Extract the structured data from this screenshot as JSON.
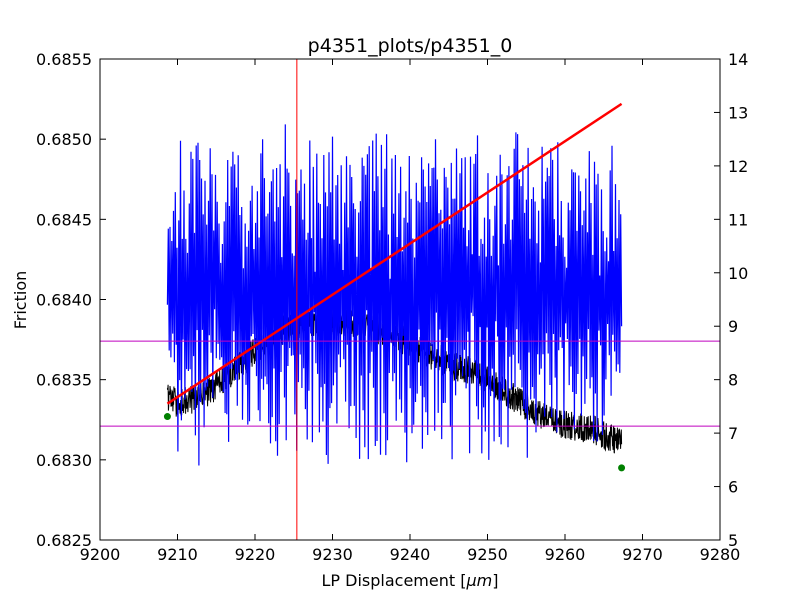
{
  "chart_data": {
    "type": "line",
    "title": "p4351_plots/p4351_0",
    "xlabel": "LP Displacement [",
    "xlabel_unit": "μm",
    "xlabel_close": "]",
    "ylabel": "Friction",
    "xlim": [
      9200,
      9280
    ],
    "ylim": [
      0.6825,
      0.6855
    ],
    "y2lim": [
      5,
      14
    ],
    "x_ticks": [
      "9200",
      "9210",
      "9220",
      "9230",
      "9240",
      "9250",
      "9260",
      "9270",
      "9280"
    ],
    "y_ticks": [
      "0.6825",
      "0.6830",
      "0.6835",
      "0.6840",
      "0.6845",
      "0.6850",
      "0.6855"
    ],
    "y2_ticks": [
      "5",
      "6",
      "7",
      "8",
      "9",
      "10",
      "11",
      "12",
      "13",
      "14"
    ],
    "colors": {
      "friction": "#000000",
      "secondary": "#0000ff",
      "fit": "#ff0000",
      "marker": "#008000",
      "vline": "#ff0000",
      "hline": "#bf00bf"
    },
    "friction_series": {
      "name": "Friction",
      "axis": "left",
      "x": [
        9208.7,
        9210,
        9212,
        9214,
        9216,
        9218,
        9220,
        9222,
        9224,
        9226,
        9228,
        9230,
        9232,
        9234,
        9236,
        9238,
        9240,
        9242,
        9244,
        9246,
        9248,
        9250,
        9252,
        9254,
        9256,
        9258,
        9260,
        9262,
        9264,
        9266,
        9267.3
      ],
      "y": [
        0.6834,
        0.68335,
        0.68338,
        0.68342,
        0.6835,
        0.68358,
        0.68368,
        0.68376,
        0.68382,
        0.68385,
        0.68386,
        0.68386,
        0.68385,
        0.68383,
        0.68381,
        0.68378,
        0.68372,
        0.68367,
        0.68362,
        0.68358,
        0.68355,
        0.6835,
        0.68343,
        0.68337,
        0.6833,
        0.68325,
        0.68322,
        0.6832,
        0.68318,
        0.68313,
        0.6831
      ]
    },
    "secondary_series": {
      "name": "Secondary",
      "axis": "right",
      "x_start": 9208.7,
      "x_end": 9267.3,
      "min": 6.0,
      "max": 13.3
    },
    "fit_line": {
      "x": [
        9208.7,
        9267.3
      ],
      "y": [
        0.68335,
        0.68522
      ]
    },
    "markers": [
      {
        "x": 9208.7,
        "y": 0.68327
      },
      {
        "x": 9267.3,
        "y": 0.68295
      }
    ],
    "vline_x": 9225.4,
    "hlines_y": [
      0.68374,
      0.68321
    ]
  }
}
